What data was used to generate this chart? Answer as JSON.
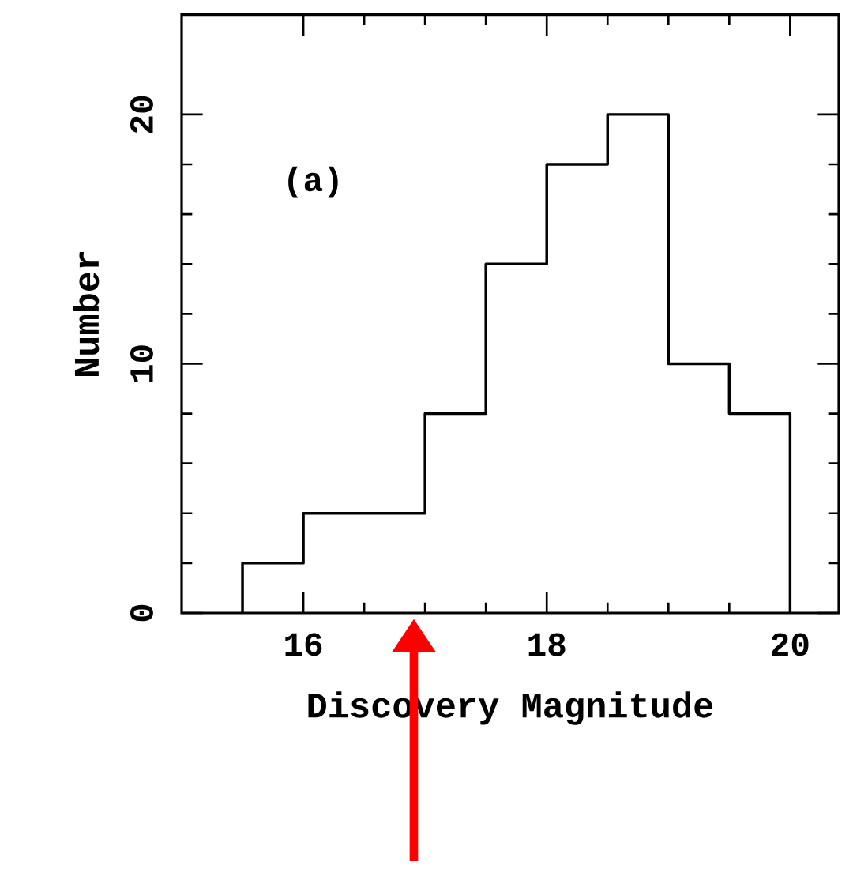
{
  "chart_data": {
    "type": "histogram",
    "xlabel": "Discovery Magnitude",
    "ylabel": "Number",
    "bins": [
      15.5,
      16,
      16.5,
      17,
      17.5,
      18,
      18.5,
      19,
      19.5,
      20
    ],
    "values": [
      2,
      4,
      4,
      8,
      14,
      18,
      20,
      10,
      8
    ],
    "color": "#000000",
    "xlim": [
      15,
      20.4
    ],
    "ylim": [
      0,
      24
    ],
    "xticks": [
      16,
      18,
      20
    ],
    "yticks": [
      0,
      10,
      20
    ],
    "annotations": [
      "(a)"
    ],
    "grid": false
  }
}
